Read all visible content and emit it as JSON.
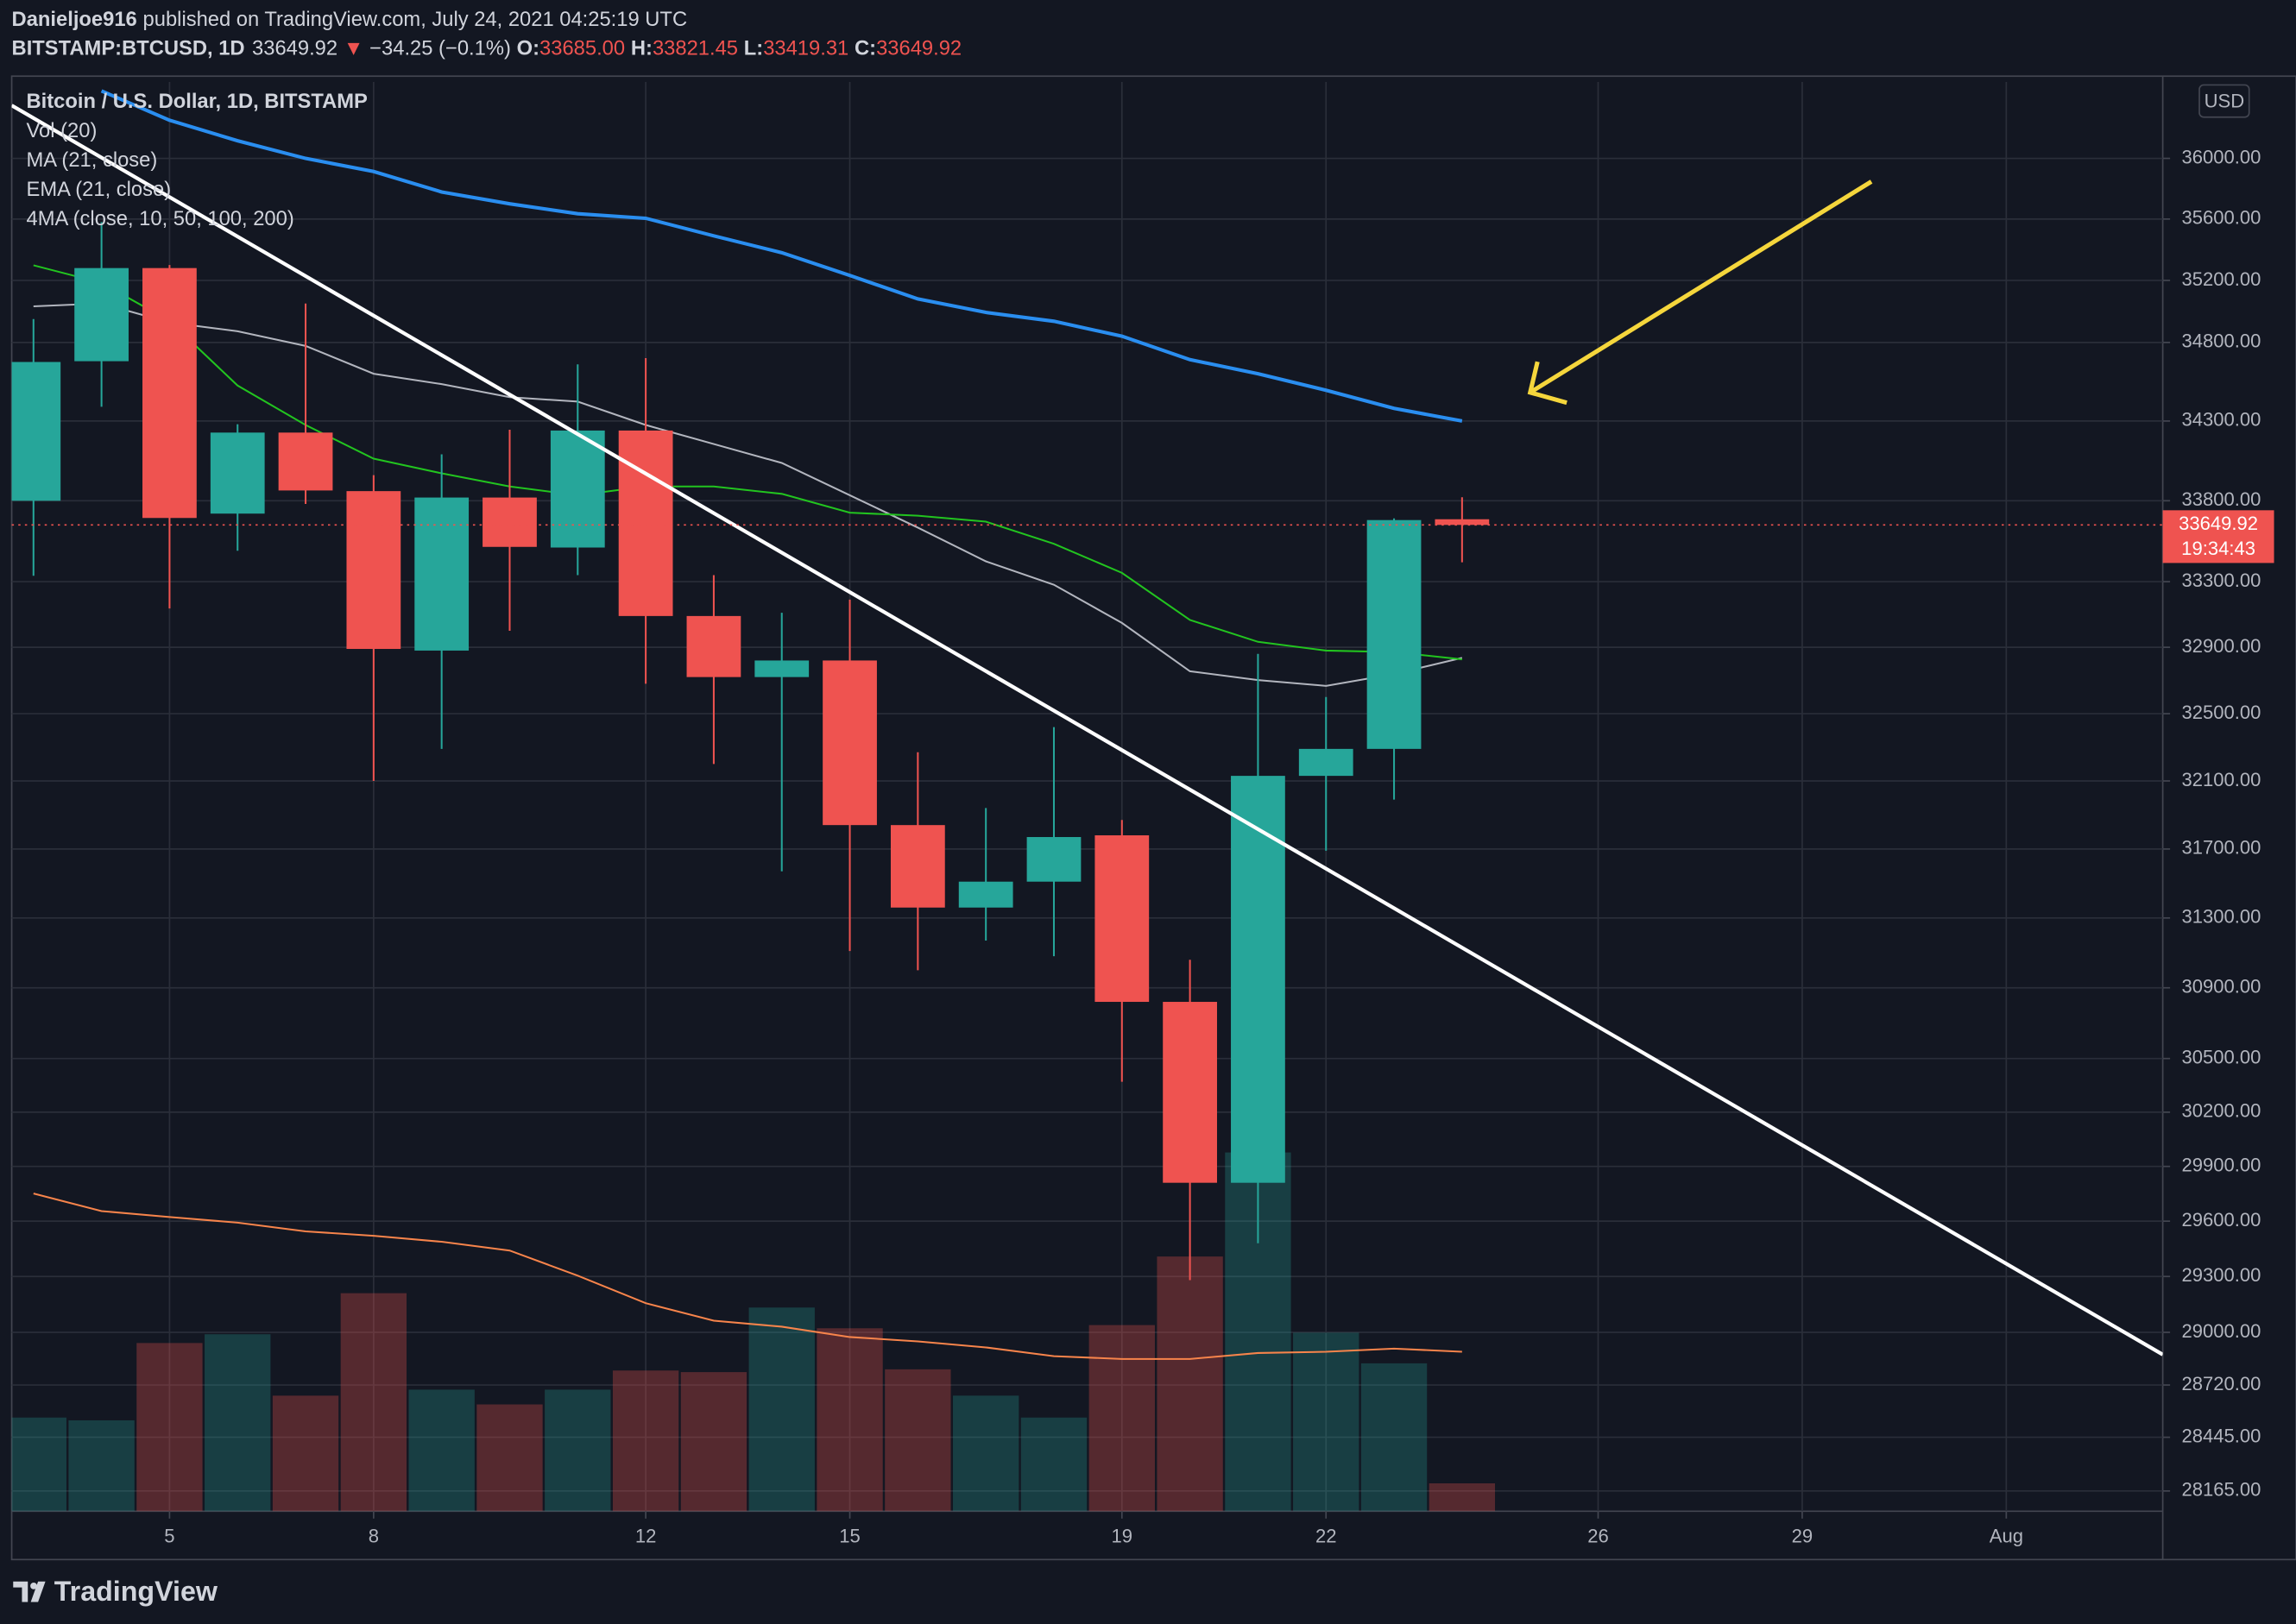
{
  "header": {
    "author": "Danieljoe916",
    "published": "published on TradingView.com, July 24, 2021 04:25:19 UTC",
    "symbol": "BITSTAMP:BTCUSD, 1D",
    "last": "33649.92",
    "arrow": "▼",
    "change": "−34.25 (−0.1%)",
    "o_label": "O:",
    "o": "33685.00",
    "h_label": "H:",
    "h": "33821.45",
    "l_label": "L:",
    "l": "33419.31",
    "c_label": "C:",
    "c": "33649.92"
  },
  "chart_data": {
    "type": "candlestick",
    "title": "Bitcoin / U.S. Dollar, 1D, BITSTAMP",
    "x": [
      3,
      4,
      5,
      6,
      7,
      8,
      9,
      10,
      11,
      12,
      13,
      14,
      15,
      16,
      17,
      18,
      19,
      20,
      21,
      22,
      23,
      24
    ],
    "open": [
      33800,
      34680,
      35280,
      33720,
      34227,
      33860,
      32880,
      33820,
      33510,
      34240,
      33090,
      32720,
      32820,
      31840,
      31360,
      31510,
      31780,
      30820,
      29810,
      32130,
      32290,
      33685
    ],
    "high": [
      34950,
      35580,
      35300,
      34280,
      35050,
      33960,
      34090,
      34245,
      34660,
      34700,
      33340,
      33110,
      33190,
      32270,
      31940,
      32420,
      31870,
      31060,
      32860,
      32600,
      33690,
      33821.45
    ],
    "low": [
      33336,
      34390,
      33136,
      33490,
      33780,
      32100,
      32290,
      33000,
      33340,
      32680,
      32200,
      31570,
      31110,
      31000,
      31170,
      31080,
      30370,
      29280,
      29480,
      31690,
      31990,
      33419.31
    ],
    "close": [
      34675,
      35280,
      33693,
      34227,
      33864,
      32890,
      33820,
      33514,
      34240,
      33090,
      32720,
      32820,
      31840,
      31360,
      31510,
      31770,
      30820,
      29810,
      32130,
      32290,
      33680,
      33649.92
    ],
    "up_color": "#26a69a",
    "down_color": "#ef5350",
    "xlim": [
      2.68,
      34.3
    ],
    "xticks": [
      5,
      8,
      12,
      15,
      19,
      22,
      26,
      29,
      {
        "value": 32,
        "label": "Aug"
      }
    ],
    "ylim": [
      28060,
      36510
    ],
    "log_scale": true,
    "grid": true,
    "yticks": [
      {
        "value": 36000,
        "label": "36000.00"
      },
      {
        "value": 35600,
        "label": "35600.00"
      },
      {
        "value": 35200,
        "label": "35200.00"
      },
      {
        "value": 34800,
        "label": "34800.00"
      },
      {
        "value": 34300,
        "label": "34300.00"
      },
      {
        "value": 33800,
        "label": "33800.00"
      },
      {
        "value": 33300,
        "label": "33300.00"
      },
      {
        "value": 32900,
        "label": "32900.00"
      },
      {
        "value": 32500,
        "label": "32500.00"
      },
      {
        "value": 32100,
        "label": "32100.00"
      },
      {
        "value": 31700,
        "label": "31700.00"
      },
      {
        "value": 31300,
        "label": "31300.00"
      },
      {
        "value": 30900,
        "label": "30900.00"
      },
      {
        "value": 30500,
        "label": "30500.00"
      },
      {
        "value": 30200,
        "label": "30200.00"
      },
      {
        "value": 29900,
        "label": "29900.00"
      },
      {
        "value": 29600,
        "label": "29600.00"
      },
      {
        "value": 29300,
        "label": "29300.00"
      },
      {
        "value": 29000,
        "label": "29000.00"
      },
      {
        "value": 28720,
        "label": "28720.00"
      },
      {
        "value": 28445,
        "label": "28445.00"
      },
      {
        "value": 28165,
        "label": "28165.00"
      }
    ],
    "currency": "USD",
    "countdown": "19:34:43",
    "volume": {
      "name": "Vol (20)",
      "vlim": [
        0,
        9000
      ],
      "values": [
        2350,
        2280,
        4220,
        4440,
        2900,
        5470,
        3050,
        2680,
        3050,
        3530,
        3490,
        5110,
        4590,
        3560,
        2900,
        2350,
        4670,
        6390,
        9000,
        4480,
        3710,
        700
      ],
      "ma_color": "#f7844b",
      "ma_values": [
        7970,
        7530,
        7380,
        7240,
        7020,
        6910,
        6760,
        6540,
        5910,
        5220,
        4780,
        4630,
        4370,
        4260,
        4110,
        3890,
        3820,
        3820,
        3970,
        4000,
        4080,
        4000
      ]
    },
    "lines": [
      {
        "name": "MA (21, close)",
        "color": "#b2b5be",
        "values": [
          35032,
          35051,
          34928,
          34872,
          34778,
          34600,
          34534,
          34451,
          34423,
          34275,
          34155,
          34036,
          33834,
          33633,
          33425,
          33281,
          33048,
          32755,
          32702,
          32667,
          32738,
          32836
        ]
      },
      {
        "name": "EMA (21, close)",
        "color": "#22c41f",
        "values": [
          35298,
          35184,
          34938,
          34525,
          34275,
          34063,
          33971,
          33889,
          33834,
          33889,
          33889,
          33843,
          33726,
          33707,
          33670,
          33533,
          33354,
          33066,
          32933,
          32880,
          32871,
          32827
        ]
      },
      {
        "name": "4MA (close, 10, 50, 100, 200)",
        "color": "#2a8ef0",
        "values": [
          null,
          36450,
          36254,
          36117,
          36000,
          35913,
          35778,
          35700,
          35635,
          35605,
          35490,
          35380,
          35232,
          35080,
          34993,
          34936,
          34840,
          34690,
          34600,
          34495,
          34380,
          34300
        ]
      }
    ]
  },
  "footer": {
    "brand": "TradingView"
  }
}
